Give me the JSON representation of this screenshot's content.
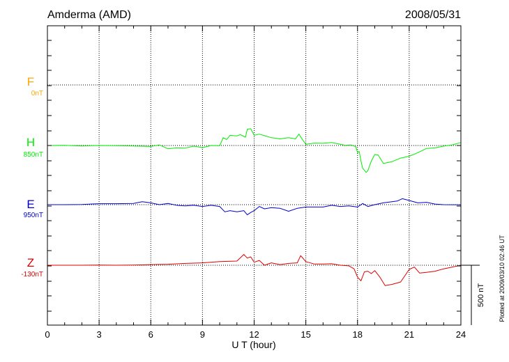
{
  "header": {
    "station": "Amderma (AMD)",
    "date": "2008/05/31"
  },
  "footer": {
    "plotted": "Plotted at 2009/03/10 02:46 UT"
  },
  "chart_data": {
    "type": "line",
    "xlabel": "U T (hour)",
    "xlim": [
      0,
      24
    ],
    "xticks": [
      "0",
      "3",
      "6",
      "9",
      "12",
      "15",
      "18",
      "21",
      "24"
    ],
    "grid": true,
    "scale_bar": {
      "label": "500 nT",
      "value": 500
    },
    "series": [
      {
        "name": "F",
        "baseline": "0nT",
        "color": "#ffa500",
        "x": [],
        "y": []
      },
      {
        "name": "H",
        "baseline": "850nT",
        "color": "#00ee00",
        "x": [
          0,
          1,
          2,
          3,
          4,
          5,
          6,
          6.5,
          7,
          7.5,
          8,
          8.5,
          9,
          9.5,
          10,
          10.2,
          10.4,
          10.6,
          11,
          11.2,
          11.5,
          11.6,
          11.8,
          12,
          12.3,
          13,
          13.5,
          14,
          14.4,
          14.6,
          14.8,
          15,
          15.5,
          16,
          16.5,
          17,
          17.3,
          17.6,
          17.9,
          18,
          18.1,
          18.2,
          18.3,
          18.5,
          18.6,
          18.8,
          19,
          19.2,
          19.5,
          20,
          20.5,
          21,
          21.5,
          22,
          22.5,
          23,
          23.5,
          24
        ],
        "y": [
          850,
          852,
          846,
          850,
          848,
          846,
          842,
          855,
          822,
          830,
          828,
          845,
          832,
          850,
          848,
          915,
          900,
          935,
          930,
          940,
          920,
          985,
          990,
          935,
          945,
          915,
          905,
          915,
          905,
          945,
          900,
          860,
          870,
          868,
          875,
          860,
          852,
          855,
          840,
          790,
          800,
          720,
          660,
          625,
          640,
          720,
          775,
          770,
          700,
          715,
          745,
          760,
          790,
          825,
          830,
          845,
          855,
          875
        ]
      },
      {
        "name": "E",
        "baseline": "950nT",
        "color": "#0000cc",
        "x": [
          0,
          1,
          2,
          3,
          4,
          5,
          5.5,
          6,
          6.5,
          7,
          7.5,
          8,
          8.5,
          9,
          9.5,
          10,
          10.3,
          10.6,
          11,
          11.4,
          11.6,
          11.8,
          12,
          12.3,
          12.6,
          13,
          13.5,
          14,
          14.5,
          15,
          15.5,
          16,
          16.5,
          17,
          17.5,
          18,
          18.3,
          18.6,
          19,
          19.5,
          20,
          20.3,
          20.6,
          21,
          21.5,
          22,
          22.5,
          23,
          24
        ],
        "y": [
          950,
          950,
          952,
          958,
          958,
          960,
          975,
          965,
          950,
          960,
          945,
          940,
          945,
          935,
          945,
          935,
          890,
          900,
          890,
          900,
          865,
          885,
          900,
          935,
          915,
          925,
          920,
          895,
          920,
          930,
          930,
          930,
          945,
          935,
          940,
          930,
          960,
          935,
          950,
          965,
          975,
          980,
          1000,
          985,
          965,
          970,
          955,
          950,
          948
        ]
      },
      {
        "name": "Z",
        "baseline": "-130nT",
        "color": "#dd0000",
        "x": [
          0,
          1,
          2,
          3,
          4,
          5,
          6,
          7,
          8,
          9,
          10,
          11,
          11.4,
          11.6,
          11.8,
          12,
          12.3,
          12.6,
          13,
          13.5,
          14,
          14.5,
          14.7,
          15,
          15.5,
          16,
          16.5,
          17,
          17.5,
          17.8,
          18,
          18.2,
          18.4,
          18.6,
          18.8,
          19,
          19.3,
          19.6,
          20,
          20.5,
          21,
          21.3,
          21.6,
          22,
          22.5,
          23,
          23.5,
          24
        ],
        "y": [
          -130,
          -130,
          -130,
          -128,
          -130,
          -128,
          -125,
          -122,
          -115,
          -110,
          -100,
          -95,
          -40,
          -70,
          -60,
          -105,
          -90,
          -130,
          -110,
          -125,
          -115,
          -110,
          -50,
          -100,
          -120,
          -120,
          -118,
          -130,
          -135,
          -160,
          -230,
          -260,
          -185,
          -180,
          -200,
          -175,
          -230,
          -300,
          -290,
          -270,
          -165,
          -145,
          -195,
          -190,
          -180,
          -160,
          -145,
          -130
        ]
      }
    ]
  }
}
